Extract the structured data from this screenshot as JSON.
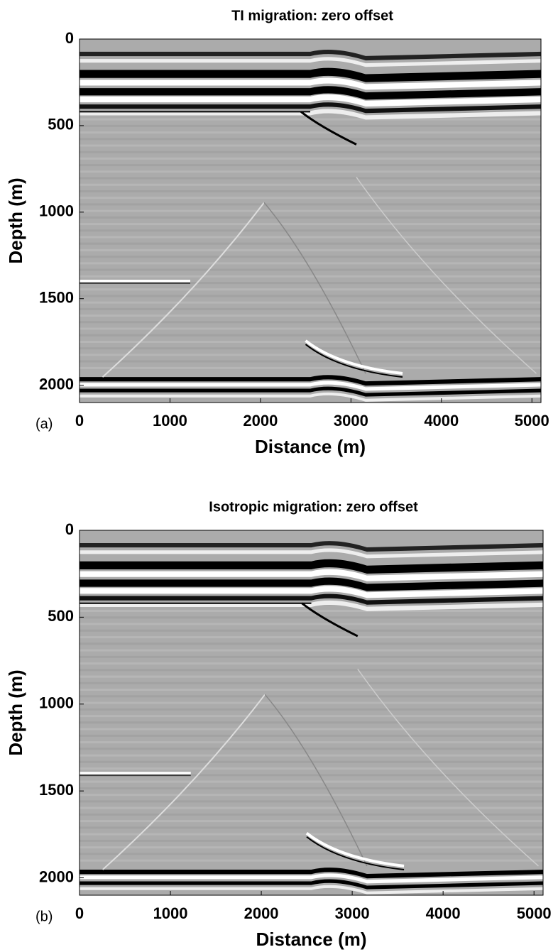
{
  "chart_data": [
    {
      "type": "image",
      "title": "TI migration: zero offset",
      "xlabel": "Distance (m)",
      "ylabel": "Depth (m)",
      "panel_label": "(a)",
      "xlim": [
        0,
        5100
      ],
      "ylim": [
        0,
        2100
      ],
      "y_reversed": true,
      "xticks": [
        0,
        1000,
        2000,
        3000,
        4000,
        5000
      ],
      "yticks": [
        0,
        500,
        1000,
        1500,
        2000
      ]
    },
    {
      "type": "image",
      "title": "Isotropic migration: zero offset",
      "xlabel": "Distance (m)",
      "ylabel": "Depth (m)",
      "panel_label": "(b)",
      "xlim": [
        0,
        5100
      ],
      "ylim": [
        0,
        2100
      ],
      "y_reversed": true,
      "xticks": [
        0,
        1000,
        2000,
        3000,
        4000,
        5000
      ],
      "yticks": [
        0,
        500,
        1000,
        1500,
        2000
      ]
    }
  ]
}
